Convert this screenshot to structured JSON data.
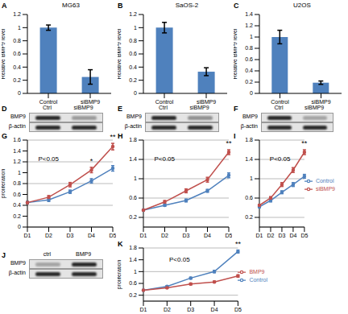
{
  "chart_data": [
    {
      "panel": "A",
      "type": "bar",
      "title": "MG63",
      "ylabel": "Relative BMP9 level",
      "categories": [
        "Control",
        "siBMP9"
      ],
      "values": [
        1.0,
        0.25
      ],
      "errors": [
        0.04,
        0.11
      ],
      "color": "#4f81bd",
      "ylim": [
        0,
        1.2
      ],
      "yticks": [
        0,
        0.2,
        0.4,
        0.6,
        0.8,
        1,
        1.2
      ],
      "grid": false
    },
    {
      "panel": "B",
      "type": "bar",
      "title": "SaOS-2",
      "ylabel": "Relative BMP9 level",
      "categories": [
        "Control",
        "siBMP9"
      ],
      "values": [
        1.0,
        0.33
      ],
      "errors": [
        0.08,
        0.06
      ],
      "color": "#4f81bd",
      "ylim": [
        0,
        1.2
      ],
      "yticks": [
        0,
        0.2,
        0.4,
        0.6,
        0.8,
        1,
        1.2
      ],
      "grid": false
    },
    {
      "panel": "C",
      "type": "bar",
      "title": "U2OS",
      "ylabel": "Relative BMP9 level",
      "categories": [
        "Control",
        "siBMP9"
      ],
      "values": [
        1.0,
        0.19
      ],
      "errors": [
        0.12,
        0.03
      ],
      "color": "#4f81bd",
      "ylim": [
        0,
        1.4
      ],
      "yticks": [
        0,
        0.2,
        0.4,
        0.6,
        0.8,
        1,
        1.2,
        1.4
      ],
      "grid": false
    },
    {
      "panel": "G",
      "type": "line",
      "ylabel": "proliferation",
      "categories": [
        "D1",
        "D2",
        "D3",
        "D4",
        "D5"
      ],
      "ylim": [
        0,
        1.6
      ],
      "yticks": [
        0,
        0.2,
        0.4,
        0.6,
        0.8,
        1,
        1.2,
        1.4,
        1.6
      ],
      "grid": true,
      "marker": "circle",
      "annotations": [
        "P<0.05"
      ],
      "significance": [
        {
          "category": "D4",
          "label": "*"
        },
        {
          "category": "D5",
          "label": "**"
        }
      ],
      "series": [
        {
          "name": "Control",
          "color": "#4f81bd",
          "values": [
            0.45,
            0.5,
            0.65,
            0.85,
            1.08
          ],
          "errors": [
            0.02,
            0.03,
            0.03,
            0.04,
            0.05
          ]
        },
        {
          "name": "siBMP9",
          "color": "#c0504d",
          "values": [
            0.45,
            0.55,
            0.78,
            1.05,
            1.48
          ],
          "errors": [
            0.02,
            0.03,
            0.04,
            0.05,
            0.06
          ]
        }
      ]
    },
    {
      "panel": "H",
      "type": "line",
      "categories": [
        "D1",
        "D2",
        "D3",
        "D4",
        "D5"
      ],
      "ylim": [
        0,
        1.8
      ],
      "yticks": [
        0,
        0.2,
        0.4,
        0.6,
        0.8,
        1,
        1.2,
        1.4,
        1.6,
        1.8
      ],
      "grid": true,
      "marker": "circle",
      "annotations": [
        "P<0.05"
      ],
      "significance": [
        {
          "category": "D5",
          "label": "**"
        }
      ],
      "series": [
        {
          "name": "Control",
          "color": "#4f81bd",
          "values": [
            0.35,
            0.45,
            0.55,
            0.75,
            1.07
          ],
          "errors": [
            0.02,
            0.02,
            0.03,
            0.03,
            0.05
          ]
        },
        {
          "name": "siBMP9",
          "color": "#c0504d",
          "values": [
            0.35,
            0.52,
            0.75,
            0.98,
            1.55
          ],
          "errors": [
            0.02,
            0.03,
            0.04,
            0.05,
            0.05
          ]
        }
      ]
    },
    {
      "panel": "I",
      "type": "line",
      "categories": [
        "D1",
        "D2",
        "D3",
        "D4",
        "D5"
      ],
      "ylim": [
        0,
        1.8
      ],
      "yticks": [
        0,
        0.2,
        0.4,
        0.6,
        0.8,
        1,
        1.2,
        1.4,
        1.6,
        1.8
      ],
      "grid": true,
      "marker": "circle",
      "legend": "right",
      "annotations": [
        "P<0.05"
      ],
      "significance": [
        {
          "category": "D5",
          "label": "**"
        }
      ],
      "series": [
        {
          "name": "Control",
          "color": "#4f81bd",
          "values": [
            0.42,
            0.55,
            0.72,
            0.88,
            1.05
          ],
          "errors": [
            0.02,
            0.03,
            0.03,
            0.04,
            0.04
          ]
        },
        {
          "name": "siBMP9",
          "color": "#c0504d",
          "values": [
            0.45,
            0.6,
            0.88,
            1.18,
            1.55
          ],
          "errors": [
            0.02,
            0.03,
            0.04,
            0.05,
            0.05
          ]
        }
      ]
    },
    {
      "panel": "K",
      "type": "line",
      "ylabel": "proliferation",
      "categories": [
        "D1",
        "D2",
        "D3",
        "D4",
        "D5"
      ],
      "ylim": [
        0,
        1.8
      ],
      "yticks": [
        0,
        0.2,
        0.4,
        0.6,
        0.8,
        1,
        1.2,
        1.4,
        1.6,
        1.8
      ],
      "grid": true,
      "marker": "circle",
      "legend": "right",
      "annotations": [
        "P<0.05"
      ],
      "significance": [
        {
          "category": "D5",
          "label": "**"
        }
      ],
      "series": [
        {
          "name": "Control",
          "color": "#4f81bd",
          "values": [
            0.37,
            0.5,
            0.78,
            1.0,
            1.68
          ],
          "errors": [
            0.02,
            0.02,
            0.03,
            0.04,
            0.05
          ]
        },
        {
          "name": "BMP9",
          "color": "#c0504d",
          "values": [
            0.37,
            0.45,
            0.58,
            0.65,
            0.85
          ],
          "errors": [
            0.02,
            0.02,
            0.03,
            0.03,
            0.04
          ]
        }
      ]
    }
  ],
  "blots": [
    {
      "panel": "D",
      "lanes": [
        "Ctrl",
        "siBMP9"
      ],
      "rows": [
        "BMP9",
        "β-actin"
      ],
      "band_intensity": [
        [
          0.9,
          0.35
        ],
        [
          0.9,
          0.9
        ]
      ]
    },
    {
      "panel": "E",
      "lanes": [
        "Ctrl",
        "siBMP9"
      ],
      "rows": [
        "BMP9",
        "β-actin"
      ],
      "band_intensity": [
        [
          0.9,
          0.4
        ],
        [
          0.9,
          0.9
        ]
      ]
    },
    {
      "panel": "F",
      "lanes": [
        "Ctrl",
        "siBMP9"
      ],
      "rows": [
        "BMP9",
        "β-actin"
      ],
      "band_intensity": [
        [
          0.9,
          0.3
        ],
        [
          0.9,
          0.9
        ]
      ]
    },
    {
      "panel": "J",
      "lanes": [
        "ctrl",
        "BMP9"
      ],
      "rows": [
        "BMP9",
        "β-actin"
      ],
      "band_intensity": [
        [
          0.3,
          0.9
        ],
        [
          0.9,
          0.9
        ]
      ]
    }
  ]
}
